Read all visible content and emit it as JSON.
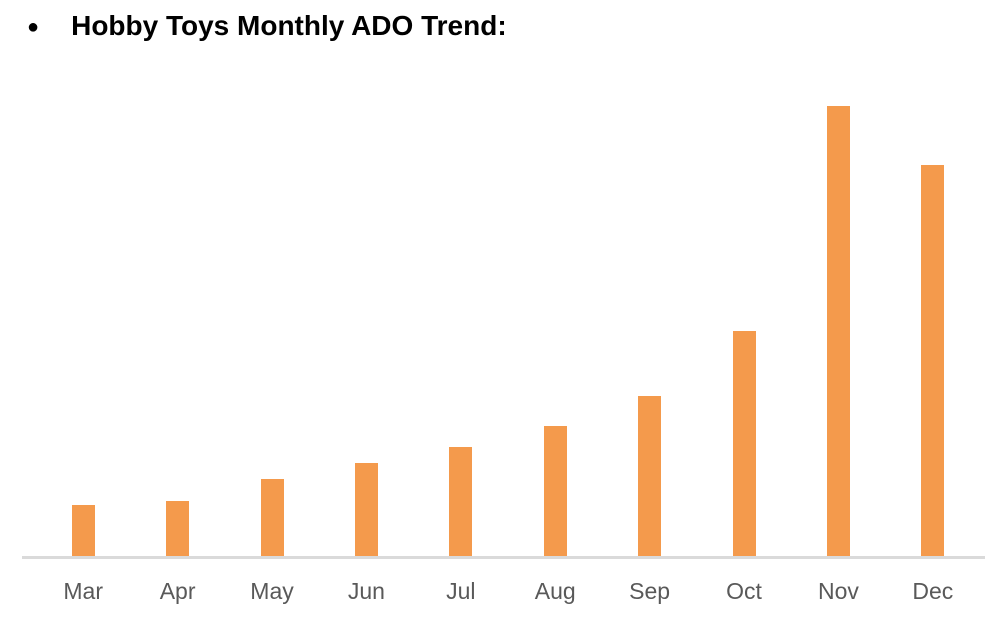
{
  "header": {
    "bullet_icon": "●",
    "title": "Hobby Toys Monthly ADO Trend:"
  },
  "chart_data": {
    "type": "bar",
    "title": "Hobby Toys Monthly ADO Trend",
    "categories": [
      "Mar",
      "Apr",
      "May",
      "Jun",
      "Jul",
      "Aug",
      "Sep",
      "Oct",
      "Nov",
      "Dec"
    ],
    "values": [
      11.3,
      12.2,
      17.1,
      20.7,
      24.2,
      28.9,
      35.6,
      50.0,
      100.0,
      86.9
    ],
    "value_scale": "relative units estimated from bar heights (Nov = 100); chart shows no y-axis or data labels",
    "xlabel": "",
    "ylabel": "",
    "ylim": [
      0,
      100
    ],
    "grid": false,
    "legend": false,
    "bar_color": "#F49A4C",
    "axis_line_color": "#DADADA",
    "tick_label_color": "#595959"
  }
}
